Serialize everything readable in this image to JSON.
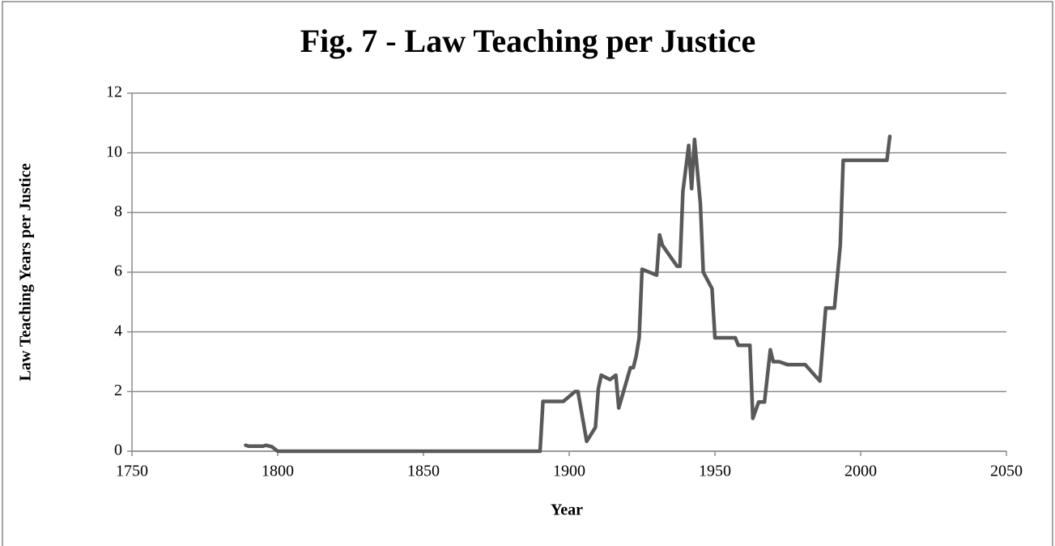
{
  "chart_data": {
    "type": "line",
    "title": "Fig. 7 - Law Teaching per Justice",
    "x_label": "Year",
    "y_label": "Law Teaching Years per Justice",
    "x": [
      1789,
      1790,
      1795,
      1796,
      1798,
      1800,
      1890,
      1891,
      1898,
      1902,
      1903,
      1906,
      1909,
      1910,
      1911,
      1914,
      1916,
      1917,
      1921,
      1922,
      1923,
      1924,
      1925,
      1930,
      1931,
      1932,
      1937,
      1938,
      1939,
      1941,
      1942,
      1943,
      1945,
      1946,
      1949,
      1950,
      1957,
      1958,
      1962,
      1963,
      1965,
      1967,
      1969,
      1970,
      1972,
      1975,
      1981,
      1986,
      1988,
      1991,
      1993,
      1994,
      2009,
      2010
    ],
    "series": [
      {
        "name": "Law Teaching Years per Justice",
        "color": "#595959",
        "values": [
          0.2,
          0.17,
          0.17,
          0.2,
          0.15,
          0,
          0,
          1.67,
          1.67,
          2.0,
          2.0,
          0.33,
          0.8,
          2.1,
          2.55,
          2.4,
          2.55,
          1.45,
          2.8,
          2.8,
          3.2,
          3.8,
          6.1,
          5.9,
          7.25,
          6.9,
          6.2,
          6.2,
          8.7,
          10.25,
          8.8,
          10.45,
          8.3,
          6.0,
          5.45,
          3.8,
          3.8,
          3.55,
          3.55,
          1.1,
          1.65,
          1.65,
          3.4,
          3.0,
          3.0,
          2.9,
          2.9,
          2.35,
          4.8,
          4.8,
          6.9,
          9.75,
          9.75,
          10.55
        ]
      }
    ],
    "xlim": [
      1750,
      2050
    ],
    "xticks": [
      1750,
      1800,
      1850,
      1900,
      1950,
      2000,
      2050
    ],
    "ylim": [
      0,
      12
    ],
    "yticks": [
      0,
      2,
      4,
      6,
      8,
      10,
      12
    ],
    "grid": true
  }
}
